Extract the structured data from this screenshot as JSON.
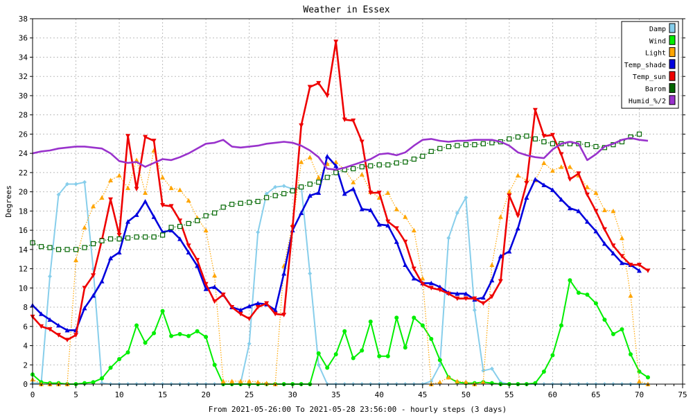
{
  "chart_data": {
    "type": "line",
    "title": "Weather in Essex",
    "xlabel": "From 2021-05-26:00 To 2021-05-28 23:56:00 - hourly steps (3 days)",
    "ylabel": "Degrees",
    "xlim": [
      0,
      75
    ],
    "ylim": [
      0,
      38
    ],
    "xticks": [
      0,
      5,
      10,
      15,
      20,
      25,
      30,
      35,
      40,
      45,
      50,
      55,
      60,
      65,
      70,
      75
    ],
    "yticks": [
      0,
      2,
      4,
      6,
      8,
      10,
      12,
      14,
      16,
      18,
      20,
      22,
      24,
      26,
      28,
      30,
      32,
      34,
      36,
      38
    ],
    "grid": true,
    "legend_position": "top-right",
    "series": [
      {
        "name": "Damp",
        "color": "#87ceeb",
        "marker": "diamond",
        "dashed": false,
        "values": [
          0.1,
          0.1,
          11.2,
          19.7,
          20.8,
          20.8,
          21,
          12,
          0.1,
          0,
          0,
          0,
          0,
          0,
          0,
          0,
          0,
          0,
          0,
          0,
          0,
          0,
          0,
          0,
          0.1,
          4.2,
          15.8,
          19.8,
          20.5,
          20.6,
          20.3,
          20.6,
          11.5,
          2,
          0,
          0,
          0,
          0,
          0,
          0,
          0,
          0,
          0,
          0,
          0,
          0,
          0.3,
          2,
          15.2,
          17.8,
          19.4,
          7.7,
          1.4,
          1.6,
          0.2,
          0,
          0,
          0,
          0,
          0,
          0,
          0,
          0,
          0,
          0,
          0,
          0,
          0,
          0,
          0,
          0,
          0
        ]
      },
      {
        "name": "Wind",
        "color": "#00ee00",
        "marker": "circle",
        "dashed": false,
        "values": [
          1,
          0.2,
          0.1,
          0.1,
          0,
          0,
          0.1,
          0.2,
          0.6,
          1.7,
          2.6,
          3.3,
          6.1,
          4.3,
          5.3,
          7.6,
          5,
          5.2,
          5,
          5.5,
          4.9,
          2,
          0,
          0,
          0,
          0,
          0,
          0,
          0,
          0,
          0,
          0,
          0,
          3.2,
          1.7,
          3.1,
          5.5,
          2.7,
          3.5,
          6.5,
          2.9,
          2.9,
          6.9,
          3.8,
          6.9,
          6.1,
          4.7,
          2.5,
          0.7,
          0.2,
          0.1,
          0.1,
          0.2,
          0.1,
          0,
          0,
          0,
          0,
          0.1,
          1.3,
          3,
          6.1,
          10.8,
          9.5,
          9.3,
          8.4,
          6.7,
          5.2,
          5.7,
          3.1,
          1.3,
          0.7
        ]
      },
      {
        "name": "Light",
        "color": "#ffa500",
        "marker": "triangle",
        "dashed": true,
        "values": [
          0.5,
          0,
          0,
          0,
          0,
          12.9,
          16.3,
          18.5,
          19.4,
          21.2,
          21.7,
          20.4,
          23.3,
          19.9,
          24.3,
          21.5,
          20.4,
          20.2,
          19.1,
          17.3,
          16,
          11.3,
          0.3,
          0.3,
          0.3,
          0.3,
          0.2,
          0.1,
          0,
          12.3,
          16.6,
          23.1,
          23.6,
          21.5,
          22.9,
          23.1,
          22.3,
          21,
          21.8,
          20,
          19.4,
          19.9,
          18.2,
          17.4,
          16,
          11,
          0,
          0.2,
          0.7,
          0.3,
          0.2,
          0,
          0.2,
          12.4,
          17.4,
          20,
          21.7,
          21.2,
          21.2,
          23,
          22.2,
          22.6,
          22.6,
          21.7,
          20.5,
          19.9,
          18.1,
          18,
          15.2,
          9.2,
          0.3,
          0
        ]
      },
      {
        "name": "Temp_shade",
        "color": "#0000dd",
        "marker": "triangle",
        "dashed": false,
        "values": [
          8.2,
          7.3,
          6.7,
          6.1,
          5.6,
          5.6,
          7.9,
          9.2,
          10.7,
          13.1,
          13.7,
          16.9,
          17.6,
          19,
          17.4,
          15.8,
          16,
          15.1,
          13.7,
          12.3,
          9.9,
          10.1,
          9.3,
          8,
          7.7,
          8.1,
          8.4,
          8.3,
          7.7,
          11.5,
          16,
          17.8,
          19.6,
          19.9,
          23.7,
          22.7,
          19.8,
          20.3,
          18.2,
          18.1,
          16.6,
          16.5,
          14.8,
          12.4,
          11,
          10.5,
          10.5,
          10.1,
          9.5,
          9.4,
          9.4,
          8.8,
          9,
          10.8,
          13.3,
          13.8,
          16.2,
          19.4,
          21.3,
          20.7,
          20.2,
          19.2,
          18.3,
          18,
          16.9,
          15.9,
          14.6,
          13.6,
          12.6,
          12.4,
          11.8
        ]
      },
      {
        "name": "Temp_sun",
        "color": "#ee0000",
        "marker": "triangle-down",
        "dashed": false,
        "values": [
          7,
          6,
          5.7,
          5.1,
          4.6,
          5.1,
          10,
          11.3,
          15,
          19.2,
          15.5,
          25.8,
          20.3,
          25.7,
          25.3,
          18.6,
          18.5,
          17,
          14.4,
          12.9,
          10.4,
          8.6,
          9.3,
          8,
          7.3,
          6.8,
          8,
          8.4,
          7.3,
          7.2,
          16.3,
          26.9,
          30.9,
          31.3,
          30,
          35.6,
          27.5,
          27.4,
          25.2,
          19.9,
          19.9,
          16.9,
          16.2,
          14.8,
          12,
          10.4,
          10,
          9.8,
          9.4,
          8.9,
          8.9,
          8.9,
          8.4,
          9.1,
          10.7,
          19.6,
          17.5,
          20.9,
          28.5,
          25.8,
          25.9,
          23.9,
          21.3,
          21.9,
          19.7,
          18,
          16.1,
          14.4,
          13.3,
          12.4,
          12.4,
          11.8
        ]
      },
      {
        "name": "Barom",
        "color": "#006600",
        "marker": "square",
        "dashed": true,
        "values": [
          14.7,
          14.3,
          14.2,
          14,
          14,
          14,
          14.2,
          14.6,
          14.9,
          15.1,
          15.1,
          15.2,
          15.3,
          15.3,
          15.3,
          15.5,
          16.3,
          16.4,
          16.7,
          17,
          17.5,
          17.8,
          18.4,
          18.7,
          18.8,
          18.9,
          19,
          19.4,
          19.6,
          19.8,
          20.1,
          20.5,
          20.8,
          21,
          21.5,
          22,
          22.3,
          22.4,
          22.6,
          22.7,
          22.8,
          22.8,
          23,
          23.1,
          23.4,
          23.7,
          24.2,
          24.5,
          24.7,
          24.8,
          24.9,
          24.9,
          25,
          25.1,
          25.2,
          25.5,
          25.7,
          25.8,
          25.5,
          25.2,
          25,
          25,
          25,
          25,
          24.9,
          24.7,
          24.6,
          24.9,
          25.2,
          25.7,
          26
        ]
      },
      {
        "name": "Humid_%/2",
        "color": "#9932cc",
        "marker": "none",
        "dashed": false,
        "values": [
          24,
          24.2,
          24.3,
          24.5,
          24.6,
          24.7,
          24.7,
          24.6,
          24.5,
          24,
          23.2,
          23,
          23.1,
          22.6,
          23,
          23.4,
          23.3,
          23.6,
          24,
          24.5,
          25,
          25.1,
          25.4,
          24.7,
          24.6,
          24.7,
          24.8,
          25,
          25.1,
          25.2,
          25.1,
          24.8,
          24.3,
          23.6,
          22.4,
          22.3,
          22.5,
          22.8,
          23.1,
          23.4,
          23.9,
          24,
          23.8,
          24.1,
          24.8,
          25.4,
          25.5,
          25.3,
          25.2,
          25.3,
          25.3,
          25.4,
          25.4,
          25.4,
          25.2,
          24.8,
          24.1,
          23.8,
          23.6,
          23.5,
          24.4,
          25,
          25.2,
          25,
          23.3,
          23.9,
          24.7,
          25,
          25.4,
          25.6,
          25.4,
          25.3
        ]
      }
    ]
  }
}
